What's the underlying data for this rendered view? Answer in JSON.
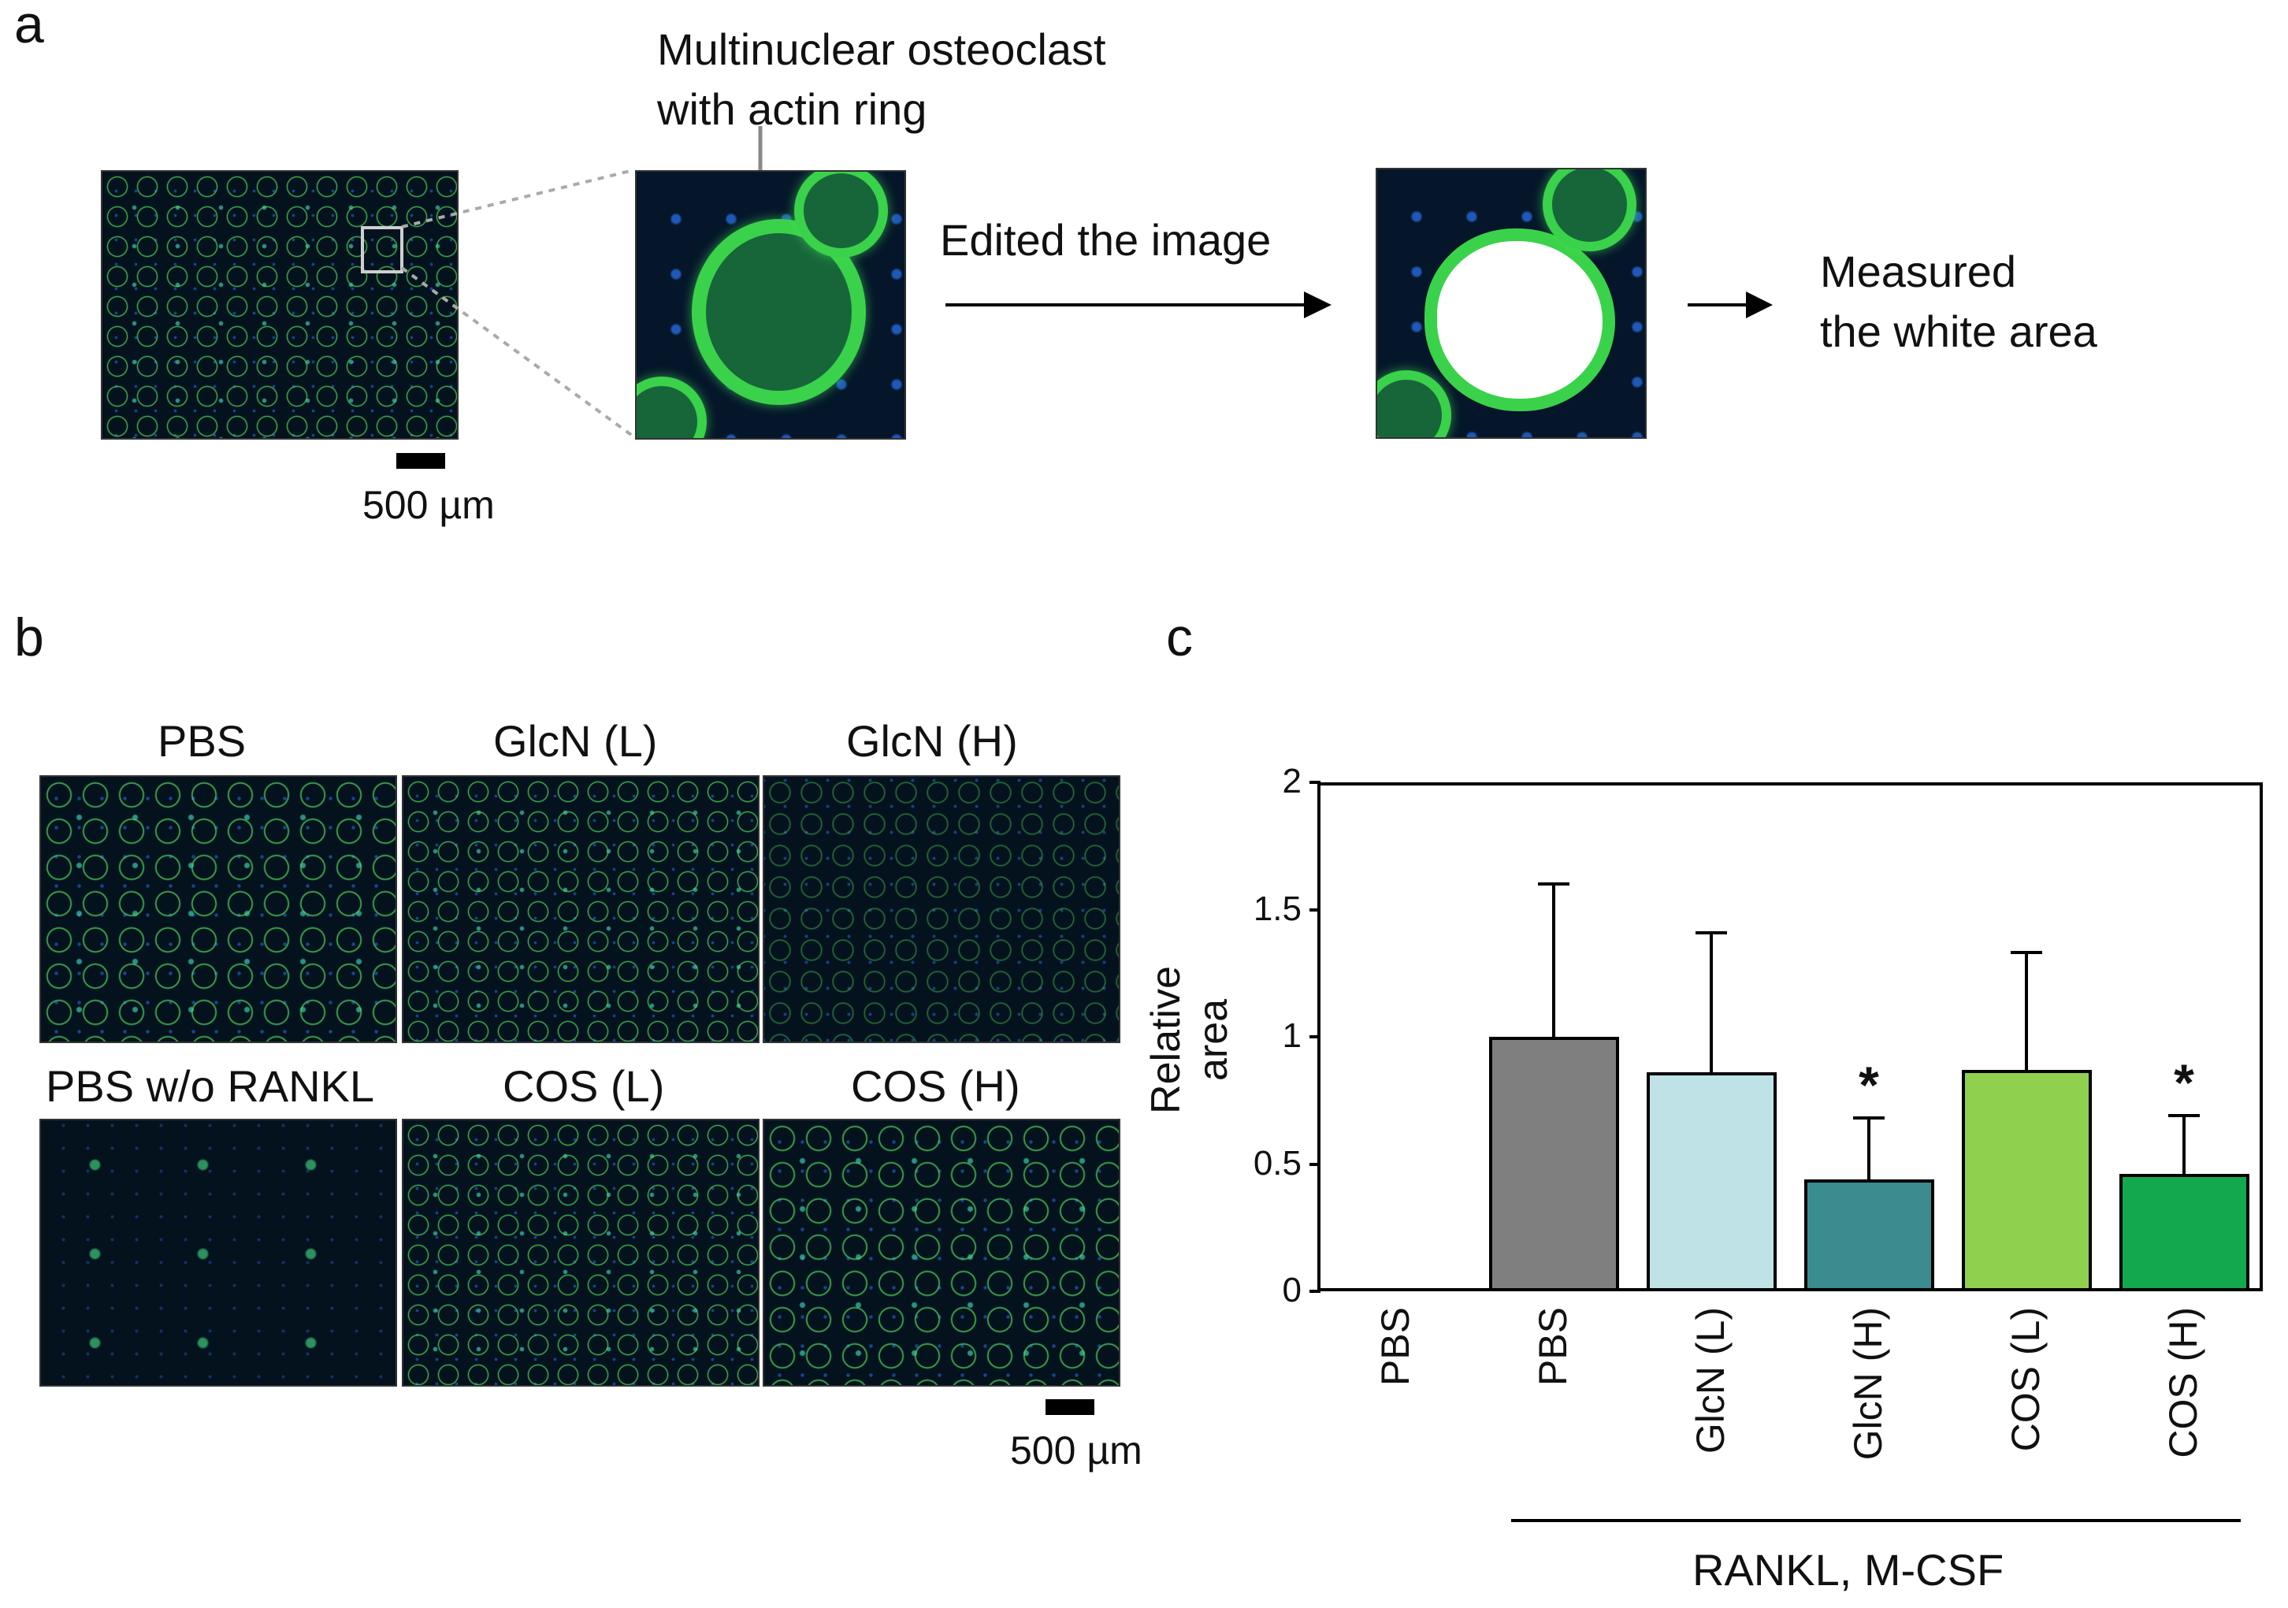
{
  "panel_a": {
    "letter": "a",
    "annotation_line1": "Multinuclear osteoclast",
    "annotation_line2": "with actin ring",
    "step1": "Edited the image",
    "step2_line1": "Measured",
    "step2_line2": "the white area",
    "scale": "500 µm"
  },
  "panel_b": {
    "letter": "b",
    "images": [
      "PBS",
      "GlcN (L)",
      "GlcN (H)",
      "PBS w/o RANKL",
      "COS (L)",
      "COS (H)"
    ],
    "scale": "500 µm"
  },
  "panel_c": {
    "letter": "c",
    "group_label": "RANKL, M-CSF"
  },
  "chart_data": {
    "type": "bar",
    "title": "",
    "xlabel": "",
    "ylabel": "Relative area",
    "ylim": [
      0,
      2
    ],
    "yticks": [
      "0",
      "0.5",
      "1",
      "1.5",
      "2"
    ],
    "categories": [
      "PBS",
      "PBS",
      "GlcN (L)",
      "GlcN (H)",
      "COS (L)",
      "COS (H)"
    ],
    "values": [
      0,
      1.0,
      0.86,
      0.44,
      0.87,
      0.46
    ],
    "error_upper": [
      0,
      1.6,
      1.41,
      0.68,
      1.33,
      0.69
    ],
    "significance": [
      "",
      "",
      "",
      "*",
      "",
      "*"
    ],
    "colors": [
      "#ffffff",
      "#7f7f7f",
      "#bfe2e6",
      "#3a8c8f",
      "#8fd14f",
      "#12a84e"
    ],
    "grid": false,
    "legend": "none"
  }
}
